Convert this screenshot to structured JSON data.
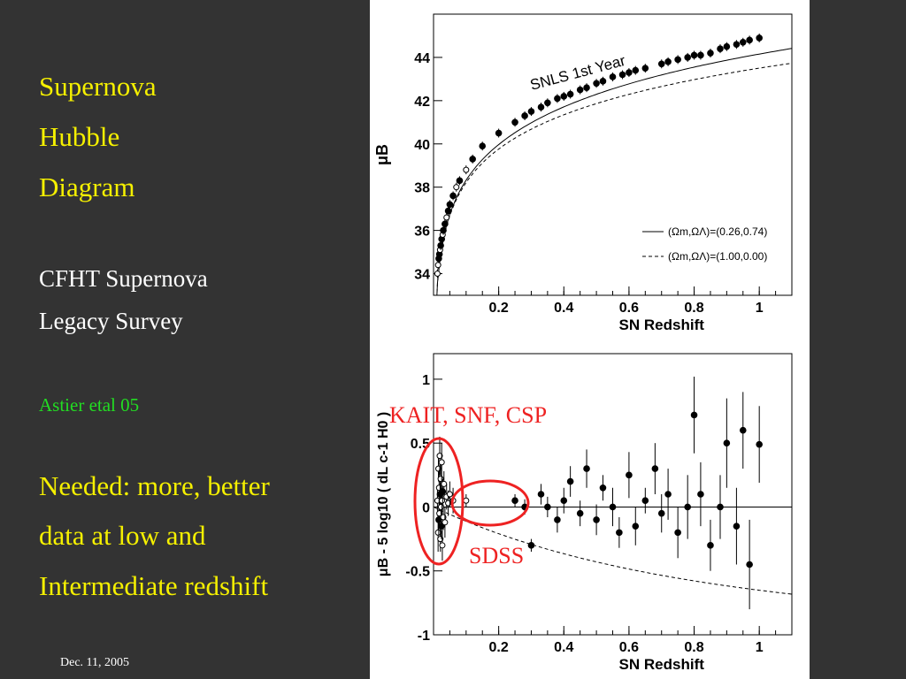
{
  "slide": {
    "title_lines": [
      "Supernova",
      "Hubble",
      "Diagram"
    ],
    "survey_lines": [
      "CFHT Supernova",
      "Legacy Survey"
    ],
    "citation": "Astier etal 05",
    "needed_lines": [
      "Needed: more, better",
      "data at low and",
      "Intermediate redshift"
    ],
    "date": "Dec. 11, 2005",
    "annotations": {
      "kait": "KAIT, SNF, CSP",
      "sdss": "SDSS"
    },
    "annotation_color": "#ee2222"
  },
  "chart_data": [
    {
      "type": "scatter",
      "title": "",
      "annotation": "SNLS 1st Year",
      "xlabel": "SN Redshift",
      "ylabel": "μB",
      "xlim": [
        0,
        1.1
      ],
      "ylim": [
        33,
        46
      ],
      "xticks": [
        0.2,
        0.4,
        0.6,
        0.8,
        1
      ],
      "xtick_labels": [
        "0.2",
        "0.4",
        "0.6",
        "0.8",
        "1"
      ],
      "yticks": [
        34,
        36,
        38,
        40,
        42,
        44
      ],
      "ytick_labels": [
        "34",
        "36",
        "38",
        "40",
        "42",
        "44"
      ],
      "legend": {
        "placement": "bottom-right",
        "entries": [
          {
            "style": "solid",
            "label": "(Ωm,ΩΛ)=(0.26,0.74)"
          },
          {
            "style": "dashed",
            "label": "(Ωm,ΩΛ)=(1.00,0.00)"
          }
        ]
      },
      "curves": [
        {
          "style": "solid",
          "omega_m": 0.26,
          "omega_l": 0.74
        },
        {
          "style": "dashed",
          "omega_m": 1.0,
          "omega_l": 0.0
        }
      ],
      "x": [
        0.012,
        0.014,
        0.016,
        0.018,
        0.02,
        0.022,
        0.025,
        0.028,
        0.03,
        0.035,
        0.04,
        0.045,
        0.05,
        0.06,
        0.07,
        0.08,
        0.1,
        0.12,
        0.15,
        0.2,
        0.25,
        0.28,
        0.3,
        0.33,
        0.35,
        0.38,
        0.4,
        0.42,
        0.45,
        0.47,
        0.5,
        0.52,
        0.55,
        0.58,
        0.6,
        0.62,
        0.65,
        0.7,
        0.72,
        0.75,
        0.78,
        0.8,
        0.82,
        0.85,
        0.88,
        0.9,
        0.93,
        0.95,
        0.97,
        1.0
      ],
      "y": [
        34.0,
        34.4,
        34.7,
        34.9,
        35.1,
        35.3,
        35.6,
        35.8,
        36.0,
        36.3,
        36.6,
        36.9,
        37.2,
        37.6,
        38.0,
        38.3,
        38.8,
        39.3,
        39.9,
        40.5,
        41.0,
        41.3,
        41.5,
        41.7,
        41.9,
        42.1,
        42.2,
        42.3,
        42.5,
        42.6,
        42.8,
        42.9,
        43.1,
        43.2,
        43.3,
        43.4,
        43.5,
        43.7,
        43.8,
        43.9,
        44.0,
        44.1,
        44.1,
        44.2,
        44.4,
        44.5,
        44.6,
        44.7,
        44.8,
        44.9
      ],
      "marker_style": [
        "open",
        "open",
        "filled",
        "filled",
        "open",
        "filled",
        "filled",
        "open",
        "filled",
        "filled",
        "open",
        "filled",
        "filled",
        "filled",
        "open",
        "filled",
        "open",
        "filled",
        "filled",
        "filled",
        "filled",
        "filled",
        "filled",
        "filled",
        "filled",
        "filled",
        "filled",
        "filled",
        "filled",
        "filled",
        "filled",
        "filled",
        "filled",
        "filled",
        "filled",
        "filled",
        "filled",
        "filled",
        "filled",
        "filled",
        "filled",
        "filled",
        "filled",
        "filled",
        "filled",
        "filled",
        "filled",
        "filled",
        "filled",
        "filled"
      ]
    },
    {
      "type": "scatter",
      "title": "",
      "xlabel": "SN Redshift",
      "ylabel": "μB - 5 log10 ( dL c-1 H0 )",
      "xlim": [
        0,
        1.1
      ],
      "ylim": [
        -1,
        1.2
      ],
      "xticks": [
        0.2,
        0.4,
        0.6,
        0.8,
        1
      ],
      "xtick_labels": [
        "0.2",
        "0.4",
        "0.6",
        "0.8",
        "1"
      ],
      "yticks": [
        -1,
        -0.5,
        0,
        0.5,
        1
      ],
      "ytick_labels": [
        "-1",
        "-0.5",
        "0",
        "0.5",
        "1"
      ],
      "reference_lines": [
        {
          "style": "solid",
          "description": "zero residual"
        },
        {
          "style": "dashed",
          "omega_m": 1.0,
          "omega_l": 0.0
        }
      ],
      "x": [
        0.012,
        0.014,
        0.015,
        0.016,
        0.017,
        0.018,
        0.019,
        0.02,
        0.021,
        0.022,
        0.023,
        0.024,
        0.025,
        0.026,
        0.027,
        0.028,
        0.03,
        0.032,
        0.035,
        0.04,
        0.045,
        0.05,
        0.06,
        0.1,
        0.25,
        0.28,
        0.3,
        0.33,
        0.35,
        0.38,
        0.4,
        0.42,
        0.45,
        0.47,
        0.5,
        0.52,
        0.55,
        0.57,
        0.6,
        0.62,
        0.65,
        0.68,
        0.7,
        0.72,
        0.75,
        0.78,
        0.8,
        0.82,
        0.85,
        0.88,
        0.9,
        0.93,
        0.95,
        0.97,
        1.0
      ],
      "y": [
        0.05,
        -0.2,
        0.3,
        -0.1,
        0.15,
        -0.05,
        0.4,
        0.1,
        -0.25,
        0.22,
        0.0,
        -0.15,
        0.35,
        0.05,
        -0.3,
        0.12,
        -0.08,
        0.18,
        -0.12,
        0.08,
        0.03,
        0.1,
        0.05,
        0.05,
        0.05,
        0.0,
        -0.3,
        0.1,
        0.0,
        -0.1,
        0.05,
        0.2,
        -0.05,
        0.3,
        -0.1,
        0.15,
        0.0,
        -0.2,
        0.25,
        -0.15,
        0.05,
        0.3,
        -0.05,
        0.1,
        -0.2,
        0.0,
        0.72,
        0.1,
        -0.3,
        0.0,
        0.5,
        -0.15,
        0.6,
        -0.45,
        0.49
      ],
      "y_err": [
        0.12,
        0.15,
        0.1,
        0.12,
        0.14,
        0.1,
        0.15,
        0.12,
        0.1,
        0.12,
        0.14,
        0.1,
        0.15,
        0.1,
        0.12,
        0.1,
        0.1,
        0.1,
        0.12,
        0.1,
        0.1,
        0.1,
        0.1,
        0.05,
        0.05,
        0.06,
        0.05,
        0.08,
        0.08,
        0.1,
        0.1,
        0.12,
        0.1,
        0.15,
        0.12,
        0.1,
        0.15,
        0.12,
        0.18,
        0.15,
        0.1,
        0.2,
        0.15,
        0.2,
        0.2,
        0.25,
        0.3,
        0.25,
        0.2,
        0.25,
        0.35,
        0.3,
        0.3,
        0.35,
        0.3
      ],
      "marker_style": [
        "open",
        "open",
        "open",
        "filled",
        "open",
        "open",
        "open",
        "filled",
        "open",
        "open",
        "open",
        "filled",
        "open",
        "open",
        "open",
        "filled",
        "open",
        "open",
        "open",
        "open",
        "open",
        "open",
        "open",
        "open",
        "filled",
        "filled",
        "filled",
        "filled",
        "filled",
        "filled",
        "filled",
        "filled",
        "filled",
        "filled",
        "filled",
        "filled",
        "filled",
        "filled",
        "filled",
        "filled",
        "filled",
        "filled",
        "filled",
        "filled",
        "filled",
        "filled",
        "filled",
        "filled",
        "filled",
        "filled",
        "filled",
        "filled",
        "filled",
        "filled",
        "filled"
      ]
    }
  ]
}
